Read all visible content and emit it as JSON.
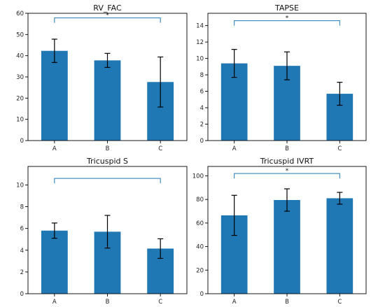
{
  "chart_data": [
    {
      "type": "bar",
      "title": "RV_FAC",
      "categories": [
        "A",
        "B",
        "C"
      ],
      "values": [
        42.3,
        37.8,
        27.6
      ],
      "errors": [
        5.5,
        3.3,
        11.8
      ],
      "ylim": [
        0,
        60
      ],
      "yticks": [
        0,
        10,
        20,
        30,
        40,
        50,
        60
      ],
      "bar_color": "#1f77b4",
      "bracket": {
        "from": "A",
        "to": "C",
        "y": 57.8,
        "label": "*"
      }
    },
    {
      "type": "bar",
      "title": "TAPSE",
      "categories": [
        "A",
        "B",
        "C"
      ],
      "values": [
        9.4,
        9.1,
        5.7
      ],
      "errors": [
        1.7,
        1.7,
        1.4
      ],
      "ylim": [
        0,
        15.5
      ],
      "yticks": [
        0,
        2,
        4,
        6,
        8,
        10,
        12,
        14
      ],
      "bar_color": "#1f77b4",
      "bracket": {
        "from": "A",
        "to": "C",
        "y": 14.6,
        "label": "*"
      }
    },
    {
      "type": "bar",
      "title": "Tricuspid S",
      "categories": [
        "A",
        "B",
        "C"
      ],
      "values": [
        5.8,
        5.7,
        4.15
      ],
      "errors": [
        0.7,
        1.5,
        0.9
      ],
      "ylim": [
        0,
        11.7
      ],
      "yticks": [
        0,
        2,
        4,
        6,
        8,
        10
      ],
      "bar_color": "#1f77b4",
      "bracket": {
        "from": "A",
        "to": "C",
        "y": 10.6,
        "label": ""
      }
    },
    {
      "type": "bar",
      "title": "Tricuspid IVRT",
      "categories": [
        "A",
        "B",
        "C"
      ],
      "values": [
        66.5,
        79.5,
        81.0
      ],
      "errors": [
        17.0,
        9.5,
        5.0
      ],
      "ylim": [
        0,
        108
      ],
      "yticks": [
        0,
        20,
        40,
        60,
        80,
        100
      ],
      "bar_color": "#1f77b4",
      "bracket": {
        "from": "A",
        "to": "C",
        "y": 102,
        "label": "*"
      }
    }
  ],
  "colors": {
    "bar": "#1f77b4",
    "bracket": "#1f77b4",
    "errorbar": "#000000",
    "axes": "#000000"
  }
}
